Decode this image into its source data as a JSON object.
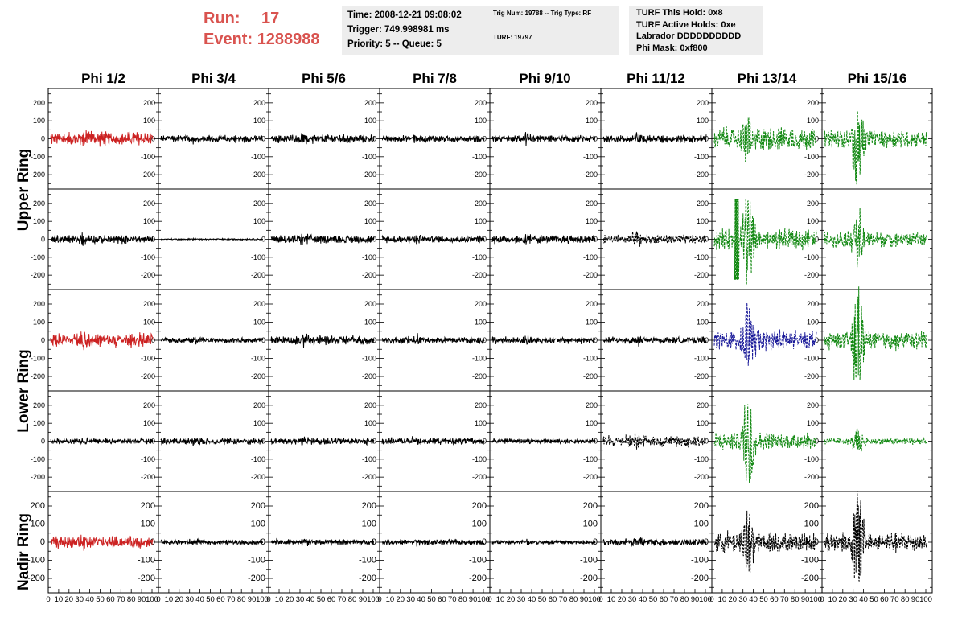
{
  "header": {
    "run_label": "Run:",
    "run_value": "17",
    "event_label": "Event:",
    "event_value": "1288988"
  },
  "time_box": {
    "line1": "Time: 2008-12-21 09:08:02",
    "line2": "Trigger: 749.998981 ms",
    "line3": "Priority: 5 -- Queue: 5"
  },
  "trig_box": {
    "line1": "Trig Num: 19788 -- Trig Type: RF",
    "line2": "TURF: 19797"
  },
  "turf_box": {
    "line1": "TURF This Hold: 0x8",
    "line2": "TURF Active Holds: 0xe",
    "line3": "Labrador DDDDDDDDDD",
    "line4": "Phi Mask: 0xf800"
  },
  "columns": [
    "Phi 1/2",
    "Phi 3/4",
    "Phi 5/6",
    "Phi 7/8",
    "Phi 9/10",
    "Phi 11/12",
    "Phi 13/14",
    "Phi 15/16"
  ],
  "rings": [
    "Upper Ring",
    "Lower Ring",
    "Nadir Ring"
  ],
  "y_ticks": [
    "200",
    "100",
    "0",
    "-100",
    "-200"
  ],
  "x_ticks": [
    "0",
    "10",
    "20",
    "30",
    "40",
    "50",
    "60",
    "70",
    "80",
    "90",
    "100"
  ],
  "colors": {
    "red": "#cc2222",
    "black": "#000000",
    "green": "#118811",
    "blue": "#1a1a99",
    "run_text": "#d9534f"
  },
  "chart_data": {
    "type": "line",
    "x_range": [
      0,
      100
    ],
    "y_range": [
      -280,
      280
    ],
    "grid": false,
    "panels": [
      {
        "row": 0,
        "col": 0,
        "color": "red",
        "amp": 30,
        "spike": 40,
        "style": "solid"
      },
      {
        "row": 0,
        "col": 1,
        "color": "black",
        "amp": 15,
        "spike": 12,
        "style": "solid"
      },
      {
        "row": 0,
        "col": 2,
        "color": "black",
        "amp": 18,
        "spike": 25,
        "style": "solid"
      },
      {
        "row": 0,
        "col": 3,
        "color": "black",
        "amp": 15,
        "spike": 15,
        "style": "solid"
      },
      {
        "row": 0,
        "col": 4,
        "color": "black",
        "amp": 15,
        "spike": 25,
        "style": "solid"
      },
      {
        "row": 0,
        "col": 5,
        "color": "black",
        "amp": 18,
        "spike": 30,
        "style": "solid"
      },
      {
        "row": 0,
        "col": 6,
        "color": "green",
        "amp": 50,
        "spike": 120,
        "style": "dashed"
      },
      {
        "row": 0,
        "col": 7,
        "color": "green",
        "amp": 40,
        "spike": 250,
        "style": "dashed"
      },
      {
        "row": 1,
        "col": 0,
        "color": "black",
        "amp": 18,
        "spike": 25,
        "style": "solid"
      },
      {
        "row": 1,
        "col": 1,
        "color": "black",
        "amp": 3,
        "spike": 4,
        "style": "solid"
      },
      {
        "row": 1,
        "col": 2,
        "color": "black",
        "amp": 18,
        "spike": 30,
        "style": "solid"
      },
      {
        "row": 1,
        "col": 3,
        "color": "black",
        "amp": 15,
        "spike": 20,
        "style": "solid"
      },
      {
        "row": 1,
        "col": 4,
        "color": "black",
        "amp": 18,
        "spike": 22,
        "style": "solid"
      },
      {
        "row": 1,
        "col": 5,
        "color": "black",
        "amp": 20,
        "spike": 30,
        "style": "dashed"
      },
      {
        "row": 1,
        "col": 6,
        "color": "green",
        "amp": 45,
        "spike": 250,
        "style": "dashed"
      },
      {
        "row": 1,
        "col": 7,
        "color": "green",
        "amp": 35,
        "spike": 150,
        "style": "dashed"
      },
      {
        "row": 2,
        "col": 0,
        "color": "red",
        "amp": 30,
        "spike": 40,
        "style": "solid"
      },
      {
        "row": 2,
        "col": 1,
        "color": "black",
        "amp": 12,
        "spike": 15,
        "style": "solid"
      },
      {
        "row": 2,
        "col": 2,
        "color": "black",
        "amp": 20,
        "spike": 25,
        "style": "solid"
      },
      {
        "row": 2,
        "col": 3,
        "color": "black",
        "amp": 15,
        "spike": 20,
        "style": "solid"
      },
      {
        "row": 2,
        "col": 4,
        "color": "black",
        "amp": 15,
        "spike": 20,
        "style": "solid"
      },
      {
        "row": 2,
        "col": 5,
        "color": "black",
        "amp": 15,
        "spike": 20,
        "style": "solid"
      },
      {
        "row": 2,
        "col": 6,
        "color": "blue",
        "amp": 45,
        "spike": 180,
        "style": "dashed"
      },
      {
        "row": 2,
        "col": 7,
        "color": "green",
        "amp": 40,
        "spike": 280,
        "style": "dashed"
      },
      {
        "row": 3,
        "col": 0,
        "color": "black",
        "amp": 12,
        "spike": 15,
        "style": "solid"
      },
      {
        "row": 3,
        "col": 1,
        "color": "black",
        "amp": 15,
        "spike": 20,
        "style": "solid"
      },
      {
        "row": 3,
        "col": 2,
        "color": "black",
        "amp": 15,
        "spike": 20,
        "style": "solid"
      },
      {
        "row": 3,
        "col": 3,
        "color": "black",
        "amp": 15,
        "spike": 20,
        "style": "solid"
      },
      {
        "row": 3,
        "col": 4,
        "color": "black",
        "amp": 12,
        "spike": 15,
        "style": "solid"
      },
      {
        "row": 3,
        "col": 5,
        "color": "black",
        "amp": 25,
        "spike": 30,
        "style": "dashed"
      },
      {
        "row": 3,
        "col": 6,
        "color": "green",
        "amp": 40,
        "spike": 250,
        "style": "dashed"
      },
      {
        "row": 3,
        "col": 7,
        "color": "green",
        "amp": 15,
        "spike": 80,
        "style": "dashed"
      },
      {
        "row": 4,
        "col": 0,
        "color": "red",
        "amp": 25,
        "spike": 40,
        "style": "solid"
      },
      {
        "row": 4,
        "col": 1,
        "color": "black",
        "amp": 10,
        "spike": 15,
        "style": "solid"
      },
      {
        "row": 4,
        "col": 2,
        "color": "black",
        "amp": 12,
        "spike": 15,
        "style": "solid"
      },
      {
        "row": 4,
        "col": 3,
        "color": "black",
        "amp": 12,
        "spike": 15,
        "style": "solid"
      },
      {
        "row": 4,
        "col": 4,
        "color": "black",
        "amp": 10,
        "spike": 12,
        "style": "solid"
      },
      {
        "row": 4,
        "col": 5,
        "color": "black",
        "amp": 15,
        "spike": 30,
        "style": "solid"
      },
      {
        "row": 4,
        "col": 6,
        "color": "black",
        "amp": 45,
        "spike": 200,
        "style": "dashed"
      },
      {
        "row": 4,
        "col": 7,
        "color": "black",
        "amp": 45,
        "spike": 270,
        "style": "dashed"
      }
    ]
  }
}
